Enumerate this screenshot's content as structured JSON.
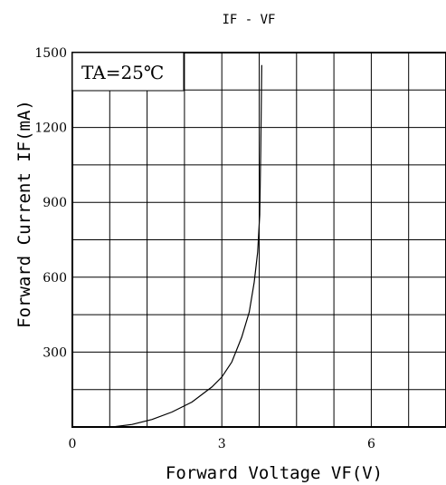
{
  "chart_data": {
    "type": "line",
    "title": "IF - VF",
    "annotation": "TA=25℃",
    "xlabel": "Forward Voltage VF(V)",
    "ylabel": "Forward Current IF(mA)",
    "xlim": [
      0,
      7.5
    ],
    "ylim": [
      0,
      1500
    ],
    "x_ticks": [
      0,
      3,
      6
    ],
    "y_ticks": [
      300,
      600,
      900,
      1200,
      1500
    ],
    "grid": true,
    "series": [
      {
        "x": [
          0.8,
          1.2,
          1.6,
          2.0,
          2.4,
          2.8,
          3.0,
          3.2,
          3.4,
          3.55,
          3.65,
          3.72,
          3.76,
          3.78,
          3.8
        ],
        "y": [
          0,
          10,
          30,
          60,
          100,
          160,
          200,
          260,
          360,
          460,
          580,
          700,
          850,
          1100,
          1450
        ]
      }
    ]
  }
}
